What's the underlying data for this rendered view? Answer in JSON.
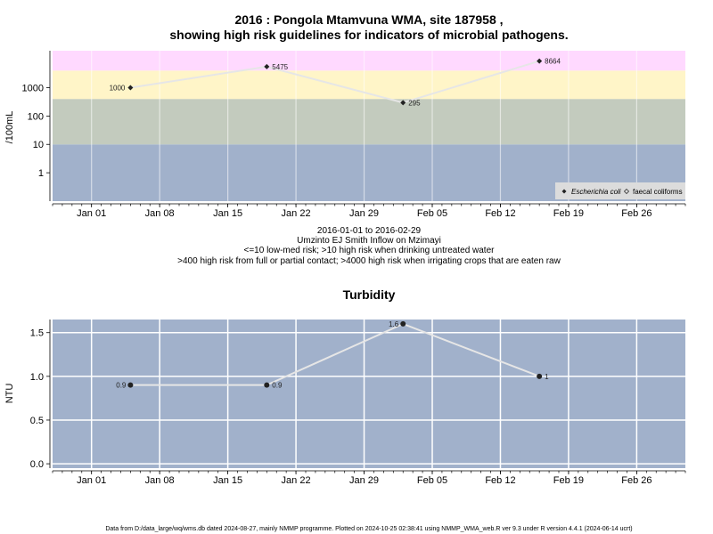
{
  "colors": {
    "band_extreme": "#ffd9ff",
    "band_high": "#fff5c8",
    "band_mid": "#c3cbbe",
    "band_low": "#a1b1cb",
    "panel_bg": "#a1b1cb",
    "legend_bg": "#dcdcdc",
    "line": "#e6e6e6",
    "grid": "#ffffff"
  },
  "top": {
    "title_line1": "2016 : Pongola Mtamvuna WMA, site 187958 ,",
    "title_line2": "showing high risk guidelines for indicators of microbial pathogens.",
    "ylabel": "/100mL",
    "sub_line1": "2016-01-01 to 2016-02-29",
    "sub_line2": "Umzinto EJ Smith Inflow on Mzimayi",
    "sub_line3": "<=10 low-med risk; >10 high risk when drinking untreated water",
    "sub_line4": ">400 high risk from full or partial contact; >4000 high risk when irrigating crops that are eaten raw",
    "legend": [
      "Escherichia coli",
      "faecal coliforms"
    ]
  },
  "bottom": {
    "title": "Turbidity",
    "ylabel": "NTU"
  },
  "footer": "Data from D:/data_large/wq/wms.db dated 2024-08-27, mainly NMMP programme. Plotted on 2024-10-25 02:38:41 using NMMP_WMA_web.R ver 9.3 under R version 4.4.1 (2024-06-14 ucrt)",
  "chart_data": [
    {
      "type": "line",
      "scale": "log",
      "x_axis": {
        "range": [
          "2015-12-28",
          "2016-03-02"
        ],
        "ticks": [
          "Jan 01",
          "Jan 08",
          "Jan 15",
          "Jan 22",
          "Jan 29",
          "Feb 05",
          "Feb 12",
          "Feb 19",
          "Feb 26"
        ]
      },
      "y_axis": {
        "range": [
          0.1,
          20000
        ],
        "ticks": [
          "1",
          "10",
          "100",
          "1000"
        ]
      },
      "bands": [
        {
          "from": 0.1,
          "to": 10,
          "color": "#a1b1cb"
        },
        {
          "from": 10,
          "to": 400,
          "color": "#c3cbbe"
        },
        {
          "from": 400,
          "to": 4000,
          "color": "#fff5c8"
        },
        {
          "from": 4000,
          "to": 20000,
          "color": "#ffd9ff"
        }
      ],
      "series": [
        {
          "name": "Escherichia coli",
          "points": [
            {
              "x": "2016-01-05",
              "y": 1000,
              "label": "1000"
            },
            {
              "x": "2016-01-19",
              "y": 5475,
              "label": "5475"
            },
            {
              "x": "2016-02-02",
              "y": 295,
              "label": "295"
            },
            {
              "x": "2016-02-16",
              "y": 8664,
              "label": "8664"
            }
          ]
        }
      ]
    },
    {
      "type": "line",
      "x_axis": {
        "range": [
          "2015-12-28",
          "2016-03-02"
        ],
        "ticks": [
          "Jan 01",
          "Jan 08",
          "Jan 15",
          "Jan 22",
          "Jan 29",
          "Feb 05",
          "Feb 12",
          "Feb 19",
          "Feb 26"
        ]
      },
      "y_axis": {
        "range": [
          -0.05,
          1.65
        ],
        "ticks": [
          "0.0",
          "0.5",
          "1.0",
          "1.5"
        ]
      },
      "series": [
        {
          "name": "Turbidity",
          "points": [
            {
              "x": "2016-01-05",
              "y": 0.9,
              "label": "0.9"
            },
            {
              "x": "2016-01-19",
              "y": 0.9,
              "label": "0.9"
            },
            {
              "x": "2016-02-02",
              "y": 1.6,
              "label": "1.6"
            },
            {
              "x": "2016-02-16",
              "y": 1,
              "label": "1"
            }
          ]
        }
      ]
    }
  ]
}
